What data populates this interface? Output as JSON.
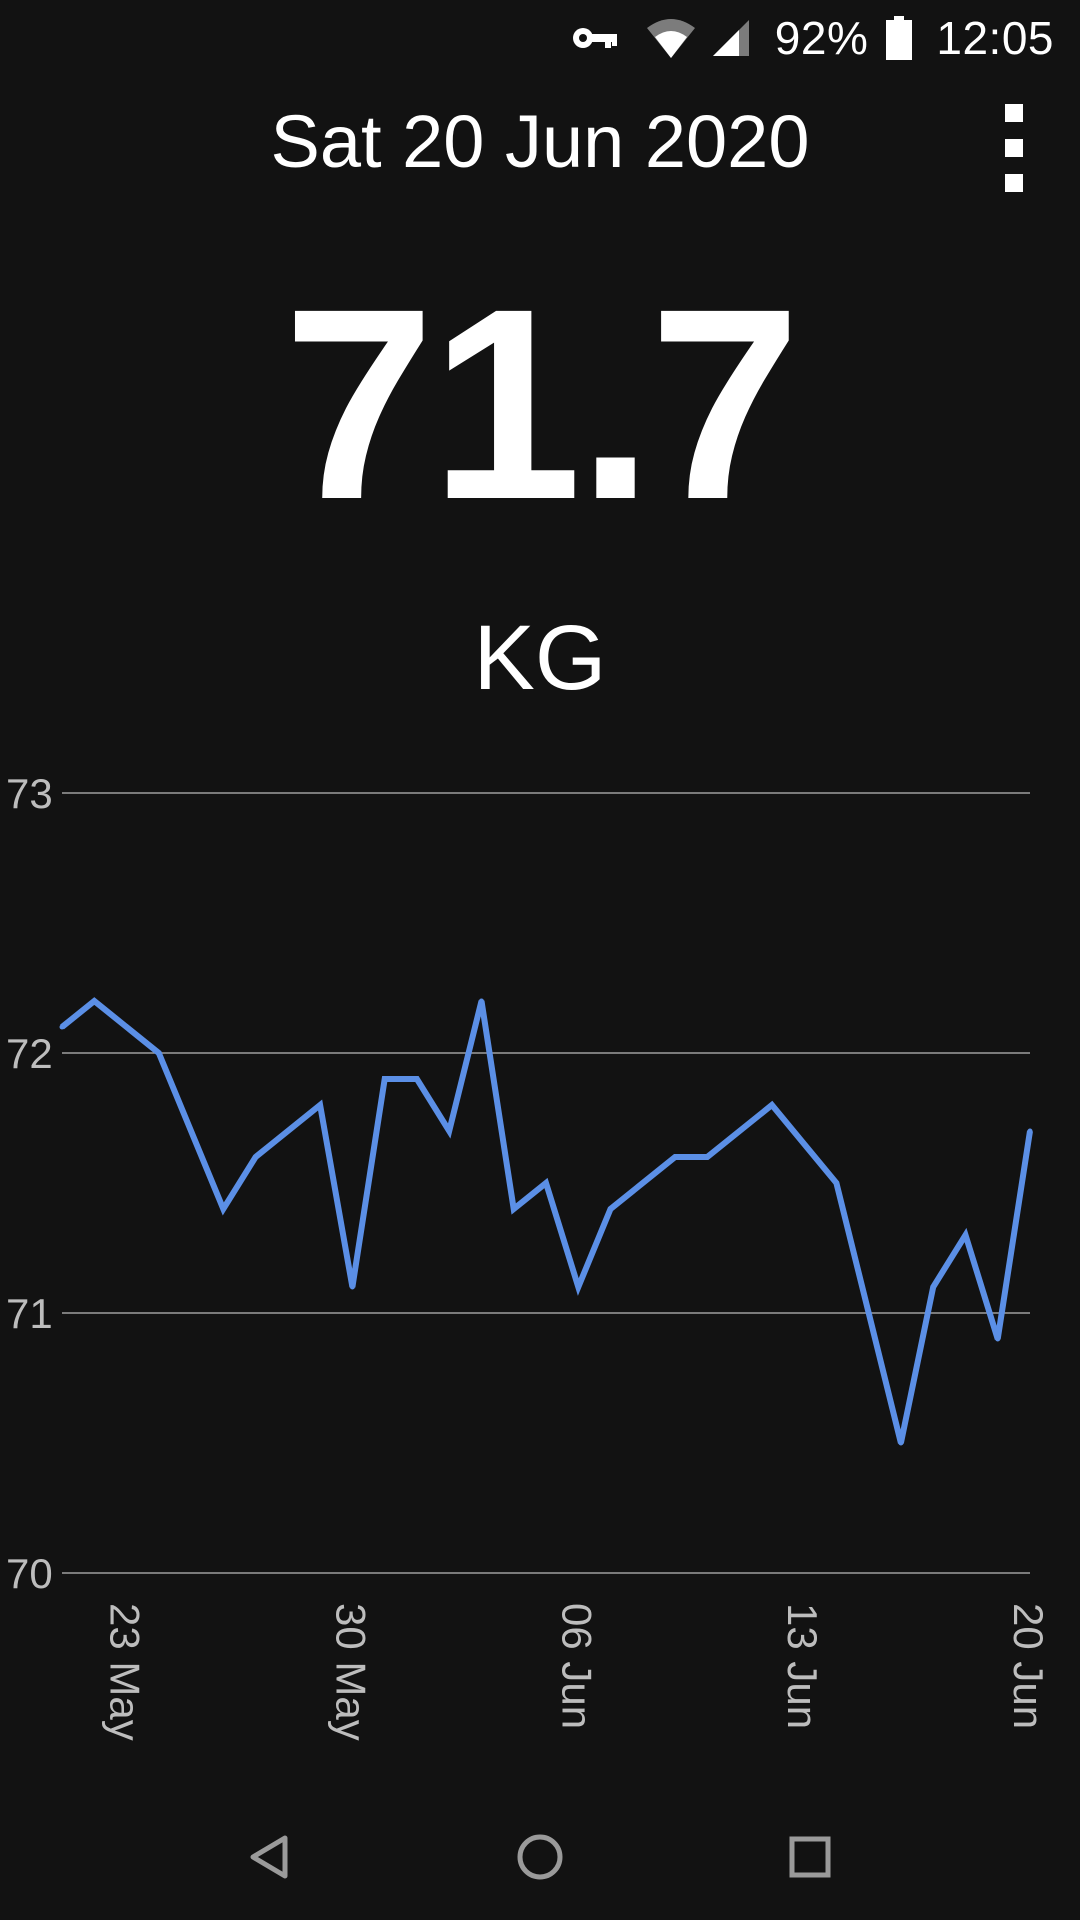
{
  "status_bar": {
    "icons": [
      "vpn-key-icon",
      "wifi-icon",
      "cellular-signal-icon",
      "battery-icon"
    ],
    "battery_percent": "92%",
    "time": "12:05"
  },
  "header": {
    "date": "Sat 20 Jun 2020",
    "menu_icon": "more-vert-icon"
  },
  "weight": {
    "value": "71.7",
    "unit": "KG"
  },
  "colors": {
    "background": "#121212",
    "line": "#5b8fe6",
    "grid": "#9e9e9e",
    "tick_text": "#bdbdbd",
    "text": "#ffffff"
  },
  "chart_data": {
    "type": "line",
    "title": "",
    "xlabel": "",
    "ylabel": "",
    "ylim": [
      70,
      73
    ],
    "xlim": [
      "2020-05-21",
      "2020-06-20"
    ],
    "grid": true,
    "y_ticks": [
      "73",
      "72",
      "71",
      "70"
    ],
    "x_ticks": [
      {
        "date": "2020-05-23",
        "label": "23 May"
      },
      {
        "date": "2020-05-30",
        "label": "30 May"
      },
      {
        "date": "2020-06-06",
        "label": "06 Jun"
      },
      {
        "date": "2020-06-13",
        "label": "13 Jun"
      },
      {
        "date": "2020-06-20",
        "label": "20 Jun"
      }
    ],
    "series": [
      {
        "points": [
          {
            "date": "2020-05-21",
            "value": 72.1
          },
          {
            "date": "2020-05-22",
            "value": 72.2
          },
          {
            "date": "2020-05-24",
            "value": 72.0
          },
          {
            "date": "2020-05-26",
            "value": 71.4
          },
          {
            "date": "2020-05-27",
            "value": 71.6
          },
          {
            "date": "2020-05-29",
            "value": 71.8
          },
          {
            "date": "2020-05-30",
            "value": 71.1
          },
          {
            "date": "2020-05-31",
            "value": 71.9
          },
          {
            "date": "2020-06-01",
            "value": 71.9
          },
          {
            "date": "2020-06-02",
            "value": 71.7
          },
          {
            "date": "2020-06-03",
            "value": 72.2
          },
          {
            "date": "2020-06-04",
            "value": 71.4
          },
          {
            "date": "2020-06-05",
            "value": 71.5
          },
          {
            "date": "2020-06-06",
            "value": 71.1
          },
          {
            "date": "2020-06-07",
            "value": 71.4
          },
          {
            "date": "2020-06-09",
            "value": 71.6
          },
          {
            "date": "2020-06-10",
            "value": 71.6
          },
          {
            "date": "2020-06-12",
            "value": 71.8
          },
          {
            "date": "2020-06-14",
            "value": 71.5
          },
          {
            "date": "2020-06-15",
            "value": 71.0
          },
          {
            "date": "2020-06-16",
            "value": 70.5
          },
          {
            "date": "2020-06-17",
            "value": 71.1
          },
          {
            "date": "2020-06-18",
            "value": 71.3
          },
          {
            "date": "2020-06-19",
            "value": 70.9
          },
          {
            "date": "2020-06-20",
            "value": 71.7
          }
        ]
      }
    ]
  },
  "nav_bar": {
    "back_icon": "back-triangle-icon",
    "home_icon": "home-circle-icon",
    "recents_icon": "recents-square-icon"
  }
}
